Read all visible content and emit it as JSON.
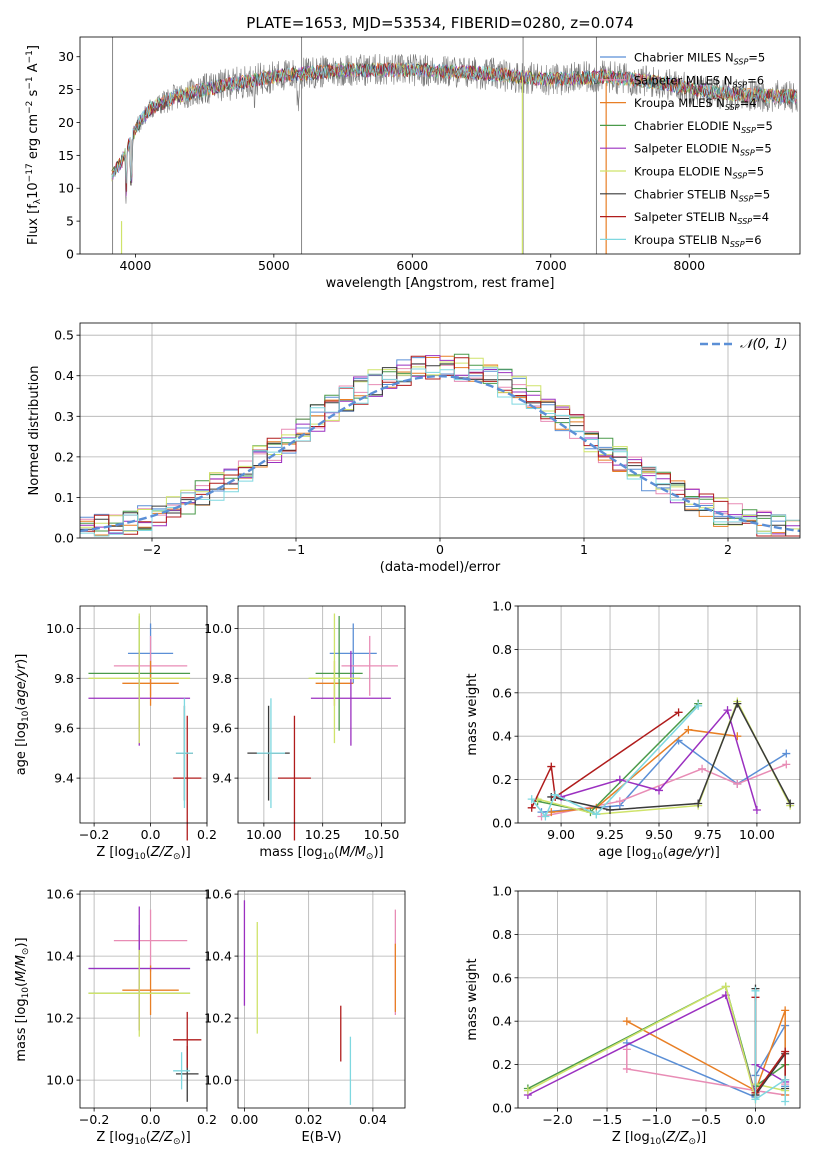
{
  "colors": {
    "Chabrier MILES": "#5b8fd6",
    "Salpeter MILES": "#e88cb5",
    "Kroupa MILES": "#e87f25",
    "Chabrier ELODIE": "#4a9a4a",
    "Salpeter ELODIE": "#9b30c0",
    "Kroupa ELODIE": "#cfe36a",
    "Chabrier STELIB": "#3a3a3a",
    "Salpeter STELIB": "#b01c1c",
    "Kroupa STELIB": "#7fd8e0"
  },
  "chart_data": [
    {
      "type": "line",
      "title": "PLATE=1653, MJD=53534, FIBERID=0280, z=0.074",
      "xlabel": "wavelength [Angstrom, rest frame]",
      "ylabel": "Flux [f_λ 10^-17 erg cm^-2 s^-1 A^-1]",
      "ylabel_parts": {
        "pre": "Flux [f",
        "sub": "λ",
        "mid": "10",
        "sup1": "−17",
        "mid2": " erg cm",
        "sup2": "−2",
        "mid3": " s",
        "sup3": "−1",
        "mid4": " A",
        "sup4": "−1",
        "post": "]"
      },
      "xlim": [
        3600,
        8800
      ],
      "ylim": [
        0,
        33
      ],
      "xticks": [
        "4000",
        "5000",
        "6000",
        "7000",
        "8000"
      ],
      "yticks": [
        "0",
        "5",
        "10",
        "15",
        "20",
        "25",
        "30"
      ],
      "continuum": [
        [
          3830,
          12
        ],
        [
          3900,
          14
        ],
        [
          4000,
          19
        ],
        [
          4100,
          22
        ],
        [
          4300,
          24
        ],
        [
          4600,
          25.5
        ],
        [
          5000,
          27
        ],
        [
          5500,
          28
        ],
        [
          6000,
          28
        ],
        [
          6500,
          27.5
        ],
        [
          7000,
          26.5
        ],
        [
          7400,
          27
        ],
        [
          7800,
          26
        ],
        [
          8200,
          24.5
        ],
        [
          8600,
          24
        ]
      ],
      "legend_placement": "upper right",
      "legend": [
        {
          "name": "Chabrier MILES",
          "nssp": "5",
          "sub": "SSP"
        },
        {
          "name": "Salpeter MILES",
          "nssp": "6",
          "sub": "SSP"
        },
        {
          "name": "Kroupa MILES",
          "nssp": "4",
          "sub": "SSP"
        },
        {
          "name": "Chabrier ELODIE",
          "nssp": "5",
          "sub": "SSP"
        },
        {
          "name": "Salpeter ELODIE",
          "nssp": "5",
          "sub": "SSP"
        },
        {
          "name": "Kroupa ELODIE",
          "nssp": "5",
          "sub": "SSP"
        },
        {
          "name": "Chabrier STELIB",
          "nssp": "5",
          "sub": "SSP"
        },
        {
          "name": "Salpeter STELIB",
          "nssp": "4",
          "sub": "SSP"
        },
        {
          "name": "Kroupa STELIB",
          "nssp": "6",
          "sub": "SSP"
        }
      ],
      "grid": false
    },
    {
      "type": "histogram",
      "xlabel": "(data-model)/error",
      "ylabel": "Normed distribution",
      "xlim": [
        -2.5,
        2.5
      ],
      "ylim": [
        0,
        0.53
      ],
      "xticks": [
        "−2",
        "−1",
        "0",
        "1",
        "2"
      ],
      "yticks": [
        "0.0",
        "0.1",
        "0.2",
        "0.3",
        "0.4",
        "0.5"
      ],
      "reference_curve": "N(0,1)",
      "legend_label": "𝒩(0, 1)",
      "legend_placement": "upper right",
      "grid": true
    },
    {
      "type": "errorbar",
      "xlabel": "Z [log₁₀(Z/Z☉)]",
      "xlabel_parts": {
        "pre": "Z [log",
        "sub": "10",
        "mid": "(",
        "it": "Z/Z",
        "sun": "⊙",
        "post": ")]"
      },
      "ylabel": "age  [log₁₀(age/yr)]",
      "ylabel_parts": {
        "pre": "age  [log",
        "sub": "10",
        "mid": "(",
        "it": "age/yr",
        "post": ")]"
      },
      "xlim": [
        -0.25,
        0.2
      ],
      "ylim": [
        9.22,
        10.09
      ],
      "xticks": [
        "−0.2",
        "0.0",
        "0.2"
      ],
      "yticks": [
        "9.4",
        "9.6",
        "9.8",
        "10.0"
      ],
      "points": [
        {
          "x": 0.0,
          "y": 9.9,
          "xerr": 0.08,
          "yerr": 0.12
        },
        {
          "x": 0.0,
          "y": 9.85,
          "xerr": 0.13,
          "yerr": 0.12
        },
        {
          "x": 0.0,
          "y": 9.78,
          "xerr": 0.1,
          "yerr": 0.09
        },
        {
          "x": -0.04,
          "y": 9.82,
          "xerr": 0.18,
          "yerr": 0.23
        },
        {
          "x": -0.04,
          "y": 9.72,
          "xerr": 0.18,
          "yerr": 0.19
        },
        {
          "x": -0.04,
          "y": 9.8,
          "xerr": 0.18,
          "yerr": 0.26
        },
        {
          "x": 0.12,
          "y": 9.5,
          "xerr": 0.03,
          "yerr": 0.19
        },
        {
          "x": 0.13,
          "y": 9.4,
          "xerr": 0.05,
          "yerr": 0.25
        },
        {
          "x": 0.12,
          "y": 9.5,
          "xerr": 0.03,
          "yerr": 0.22
        }
      ],
      "grid": true
    },
    {
      "type": "errorbar",
      "xlabel": "mass [log₁₀(M/M☉)]",
      "xlabel_parts": {
        "pre": "mass [log",
        "sub": "10",
        "mid": "(",
        "it": "M/M",
        "sun": "⊙",
        "post": ")]"
      },
      "ylabel": "",
      "xlim": [
        9.89,
        10.6
      ],
      "ylim": [
        9.22,
        10.09
      ],
      "xticks": [
        "10.00",
        "10.25",
        "10.50"
      ],
      "yticks": [
        "9.4",
        "9.6",
        "9.8",
        "10.0"
      ],
      "points": [
        {
          "x": 10.38,
          "y": 9.9,
          "xerr": 0.1,
          "yerr": 0.12
        },
        {
          "x": 10.45,
          "y": 9.85,
          "xerr": 0.12,
          "yerr": 0.12
        },
        {
          "x": 10.3,
          "y": 9.78,
          "xerr": 0.08,
          "yerr": 0.09
        },
        {
          "x": 10.32,
          "y": 9.82,
          "xerr": 0.1,
          "yerr": 0.23
        },
        {
          "x": 10.37,
          "y": 9.72,
          "xerr": 0.17,
          "yerr": 0.19
        },
        {
          "x": 10.3,
          "y": 9.8,
          "xerr": 0.11,
          "yerr": 0.26
        },
        {
          "x": 10.02,
          "y": 9.5,
          "xerr": 0.09,
          "yerr": 0.19
        },
        {
          "x": 10.13,
          "y": 9.4,
          "xerr": 0.07,
          "yerr": 0.25
        },
        {
          "x": 10.03,
          "y": 9.5,
          "xerr": 0.06,
          "yerr": 0.22
        }
      ],
      "grid": true
    },
    {
      "type": "line",
      "xlabel": "age  [log₁₀(age/yr)]",
      "xlabel_parts": {
        "pre": "age  [log",
        "sub": "10",
        "mid": "(",
        "it": "age/yr",
        "post": ")]"
      },
      "ylabel": "mass weight",
      "xlim": [
        8.78,
        10.22
      ],
      "ylim": [
        0,
        1
      ],
      "xticks": [
        "9.00",
        "9.25",
        "9.50",
        "9.75",
        "10.00"
      ],
      "yticks": [
        "0.0",
        "0.2",
        "0.4",
        "0.6",
        "0.8",
        "1.0"
      ],
      "series": [
        {
          "key": "Chabrier MILES",
          "x": [
            8.9,
            9.3,
            9.6,
            9.9,
            10.15
          ],
          "y": [
            0.05,
            0.08,
            0.38,
            0.18,
            0.32
          ]
        },
        {
          "key": "Salpeter MILES",
          "x": [
            8.9,
            9.3,
            9.72,
            9.9,
            10.15
          ],
          "y": [
            0.03,
            0.1,
            0.25,
            0.18,
            0.27
          ]
        },
        {
          "key": "Kroupa MILES",
          "x": [
            8.95,
            9.18,
            9.65,
            9.9
          ],
          "y": [
            0.05,
            0.07,
            0.43,
            0.4
          ]
        },
        {
          "key": "Chabrier ELODIE",
          "x": [
            8.88,
            9.15,
            9.7
          ],
          "y": [
            0.1,
            0.05,
            0.55
          ]
        },
        {
          "key": "Salpeter ELODIE",
          "x": [
            9.0,
            9.3,
            9.5,
            9.85,
            10.0
          ],
          "y": [
            0.12,
            0.2,
            0.15,
            0.52,
            0.06
          ]
        },
        {
          "key": "Kroupa ELODIE",
          "x": [
            8.88,
            9.18,
            9.7,
            9.9,
            10.17
          ],
          "y": [
            0.11,
            0.04,
            0.08,
            0.56,
            0.08
          ]
        },
        {
          "key": "Chabrier STELIB",
          "x": [
            8.95,
            9.25,
            9.7,
            9.9,
            10.17
          ],
          "y": [
            0.12,
            0.06,
            0.09,
            0.55,
            0.09
          ]
        },
        {
          "key": "Salpeter STELIB",
          "x": [
            8.85,
            8.95,
            8.97,
            9.6
          ],
          "y": [
            0.07,
            0.26,
            0.12,
            0.51
          ]
        },
        {
          "key": "Kroupa STELIB",
          "x": [
            8.85,
            8.92,
            8.97,
            9.18,
            9.7
          ],
          "y": [
            0.11,
            0.03,
            0.13,
            0.04,
            0.54
          ]
        }
      ],
      "grid": true
    },
    {
      "type": "errorbar",
      "xlabel": "Z [log₁₀(Z/Z☉)]",
      "xlabel_parts": {
        "pre": "Z [log",
        "sub": "10",
        "mid": "(",
        "it": "Z/Z",
        "sun": "⊙",
        "post": ")]"
      },
      "ylabel": "mass [log₁₀(M/M☉)]",
      "ylabel_parts": {
        "pre": "mass [log",
        "sub": "10",
        "mid": "(",
        "it": "M/M",
        "sun": "⊙",
        "post": ")]"
      },
      "xlim": [
        -0.25,
        0.2
      ],
      "ylim": [
        9.91,
        10.61
      ],
      "xticks": [
        "−0.2",
        "0.0",
        "0.2"
      ],
      "yticks": [
        "10.0",
        "10.2",
        "10.4",
        "10.6"
      ],
      "points": [
        {
          "x": -0.04,
          "y": 10.36,
          "xerr": 0.18,
          "yerr": 0.14
        },
        {
          "x": 0.0,
          "y": 10.45,
          "xerr": 0.13,
          "yerr": 0.1
        },
        {
          "x": 0.0,
          "y": 10.29,
          "xerr": 0.1,
          "yerr": 0.08
        },
        {
          "x": -0.04,
          "y": 10.28,
          "xerr": 0.18,
          "yerr": 0.12
        },
        {
          "x": -0.04,
          "y": 10.36,
          "xerr": 0.18,
          "yerr": 0.2
        },
        {
          "x": -0.04,
          "y": 10.28,
          "xerr": 0.18,
          "yerr": 0.14
        },
        {
          "x": 0.13,
          "y": 10.02,
          "xerr": 0.04,
          "yerr": 0.09
        },
        {
          "x": 0.13,
          "y": 10.13,
          "xerr": 0.05,
          "yerr": 0.09
        },
        {
          "x": 0.11,
          "y": 10.03,
          "xerr": 0.03,
          "yerr": 0.06
        }
      ],
      "grid": true
    },
    {
      "type": "errorbar",
      "xlabel": "E(B-V)",
      "ylabel": "",
      "xlim": [
        -0.002,
        0.05
      ],
      "ylim": [
        9.91,
        10.61
      ],
      "xticks": [
        "0.00",
        "0.02",
        "0.04"
      ],
      "yticks": [
        "10.0",
        "10.2",
        "10.4",
        "10.6"
      ],
      "points": [
        {
          "x": 0.0,
          "y": 10.41,
          "xerr": 0,
          "yerr": 0.17
        },
        {
          "x": 0.004,
          "y": 10.33,
          "xerr": 0,
          "yerr": 0.18
        },
        {
          "x": 0.03,
          "y": 10.15,
          "xerr": 0,
          "yerr": 0.09
        },
        {
          "x": 0.033,
          "y": 10.03,
          "xerr": 0,
          "yerr": 0.11
        },
        {
          "x": 0.047,
          "y": 10.38,
          "xerr": 0,
          "yerr": 0.17
        },
        {
          "x": 0.047,
          "y": 10.33,
          "xerr": 0,
          "yerr": 0.11
        }
      ],
      "point_colors": [
        "Salpeter ELODIE",
        "Kroupa ELODIE",
        "Salpeter STELIB",
        "Kroupa STELIB",
        "Salpeter MILES",
        "Kroupa MILES"
      ],
      "grid": true
    },
    {
      "type": "line",
      "xlabel": "Z [log₁₀(Z/Z☉)]",
      "xlabel_parts": {
        "pre": "Z [log",
        "sub": "10",
        "mid": "(",
        "it": "Z/Z",
        "sun": "⊙",
        "post": ")]"
      },
      "ylabel": "mass weight",
      "xlim": [
        -2.4,
        0.45
      ],
      "ylim": [
        0,
        1
      ],
      "xticks": [
        "−2.0",
        "−1.5",
        "−1.0",
        "−0.5",
        "0.0"
      ],
      "yticks": [
        "0.0",
        "0.2",
        "0.4",
        "0.6",
        "0.8",
        "1.0"
      ],
      "series": [
        {
          "key": "Chabrier MILES",
          "x": [
            -1.3,
            0.0,
            0.0,
            0.3,
            0.3
          ],
          "y": [
            0.3,
            0.05,
            0.15,
            0.38,
            0.1
          ]
        },
        {
          "key": "Salpeter MILES",
          "x": [
            -1.3,
            -1.3,
            0.0,
            0.3,
            0.3
          ],
          "y": [
            0.27,
            0.18,
            0.08,
            0.06,
            0.11
          ]
        },
        {
          "key": "Kroupa MILES",
          "x": [
            -1.3,
            0.0,
            0.3,
            0.3
          ],
          "y": [
            0.4,
            0.08,
            0.45,
            0.06
          ]
        },
        {
          "key": "Chabrier ELODIE",
          "x": [
            -2.3,
            -0.3,
            0.0,
            0.0,
            0.3
          ],
          "y": [
            0.09,
            0.56,
            0.06,
            0.1,
            0.2
          ]
        },
        {
          "key": "Salpeter ELODIE",
          "x": [
            -2.3,
            -0.3,
            0.0,
            0.0,
            0.3
          ],
          "y": [
            0.06,
            0.52,
            0.06,
            0.2,
            0.12
          ]
        },
        {
          "key": "Kroupa ELODIE",
          "x": [
            -2.3,
            -0.3,
            0.0,
            0.0,
            0.3
          ],
          "y": [
            0.08,
            0.56,
            0.04,
            0.11,
            0.08
          ]
        },
        {
          "key": "Chabrier STELIB",
          "x": [
            0.0,
            0.0,
            0.3,
            0.3
          ],
          "y": [
            0.55,
            0.06,
            0.25,
            0.09
          ]
        },
        {
          "key": "Salpeter STELIB",
          "x": [
            0.0,
            0.0,
            0.3,
            0.3
          ],
          "y": [
            0.51,
            0.07,
            0.26,
            0.13
          ]
        },
        {
          "key": "Kroupa STELIB",
          "x": [
            0.0,
            0.0,
            0.3,
            0.3
          ],
          "y": [
            0.54,
            0.04,
            0.13,
            0.03
          ]
        }
      ],
      "grid": true
    }
  ]
}
